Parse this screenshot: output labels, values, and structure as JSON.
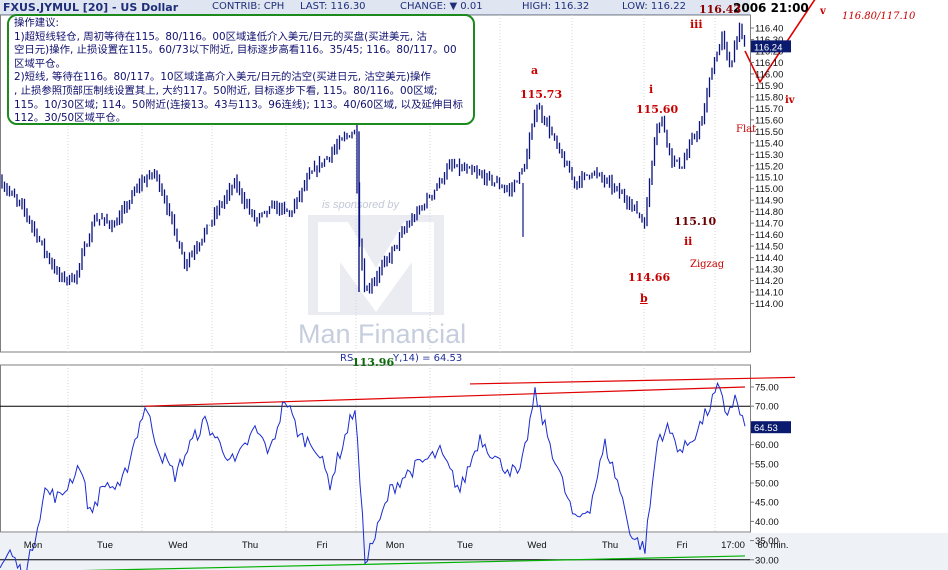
{
  "header": {
    "symbol": "FXUS.JYMUL [20] - US Dollar",
    "contrib": "CONTRIB: CPH",
    "last": "LAST: 116.30",
    "change": "CHANGE: ▼ 0.01",
    "high": "HIGH: 116.32",
    "low": "LOW: 116.22",
    "timestamp": "2006 21:00"
  },
  "note": {
    "lines": [
      "操作建议:",
      "1)超短线轻仓, 周初等待在115。80/116。00区域逢低介入美元/日元的买盘(买进美元, 沽",
      "空日元)操作, 止损设置在115。60/73以下附近, 目标逐步高看116。35/45; 116。80/117。00",
      "区域平仓。",
      "2)短线, 等待在116。80/117。10区域逢高介入美元/日元的沽空(买进日元, 沽空美元)操作",
      ", 止损参照顶部压制线设置其上, 大约117。50附近, 目标逐步下看, 115。80/116。00区域;",
      "115。10/30区域; 114。50附近(连接13。43与113。96连线); 113。40/60区域, 以及延伸目标",
      "112。30/50区域平仓。"
    ]
  },
  "watermark": {
    "brand": "Man Financial",
    "sponsor": "is sponsored by"
  },
  "annotations": {
    "target_zone": "116.80/117.10",
    "wave_v": "v",
    "wave_iv": "iv",
    "wave_iii": "iii",
    "wave_iii_value": "116.43",
    "wave_a": "a",
    "wave_a_value": "115.73",
    "wave_i": "i",
    "wave_i_value": "115.60",
    "wave_ii": "ii",
    "wave_ii_value": "115.10",
    "wave_b": "b",
    "wave_b_value": "114.66",
    "flat": "Flat",
    "zigzag": "Zigzag",
    "low_value": "113.96",
    "rsi_label_prefix": "RS",
    "rsi_label_suffix": "Y,14) = 64.53"
  },
  "chart_data": {
    "type": "line",
    "timeframe": "60 min.",
    "x_ticks": [
      "Mon",
      "Tue",
      "Wed",
      "Thu",
      "Fri",
      "Mon",
      "Tue",
      "Wed",
      "Thu",
      "Fri",
      "17:00",
      "60 min."
    ],
    "price": {
      "y_ticks": [
        "116.40",
        "116.30",
        "116.20",
        "116.10",
        "116.00",
        "115.90",
        "115.80",
        "115.70",
        "115.60",
        "115.50",
        "115.40",
        "115.30",
        "115.20",
        "115.10",
        "115.00",
        "114.90",
        "114.80",
        "114.70",
        "114.60",
        "114.50",
        "114.40",
        "114.30",
        "114.20",
        "114.10",
        "114.00"
      ],
      "ylim": [
        113.95,
        116.5
      ],
      "last_value": "116.24",
      "anchors": [
        [
          0,
          115.07
        ],
        [
          25,
          114.8
        ],
        [
          45,
          114.45
        ],
        [
          60,
          114.22
        ],
        [
          75,
          114.22
        ],
        [
          95,
          114.75
        ],
        [
          115,
          114.68
        ],
        [
          140,
          115.05
        ],
        [
          155,
          115.14
        ],
        [
          165,
          114.9
        ],
        [
          185,
          114.35
        ],
        [
          200,
          114.55
        ],
        [
          220,
          114.85
        ],
        [
          235,
          115.05
        ],
        [
          255,
          114.72
        ],
        [
          275,
          114.85
        ],
        [
          290,
          114.78
        ],
        [
          310,
          115.12
        ],
        [
          330,
          115.3
        ],
        [
          345,
          115.45
        ],
        [
          355,
          115.5
        ],
        [
          359,
          114.58
        ],
        [
          365,
          114.1
        ],
        [
          375,
          114.22
        ],
        [
          390,
          114.42
        ],
        [
          405,
          114.65
        ],
        [
          420,
          114.82
        ],
        [
          435,
          115.0
        ],
        [
          450,
          115.2
        ],
        [
          470,
          115.15
        ],
        [
          490,
          115.08
        ],
        [
          510,
          114.98
        ],
        [
          525,
          115.2
        ],
        [
          536,
          115.73
        ],
        [
          548,
          115.55
        ],
        [
          560,
          115.3
        ],
        [
          575,
          115.05
        ],
        [
          592,
          115.15
        ],
        [
          612,
          115.02
        ],
        [
          630,
          114.88
        ],
        [
          645,
          114.7
        ],
        [
          655,
          115.5
        ],
        [
          662,
          115.6
        ],
        [
          672,
          115.25
        ],
        [
          682,
          115.2
        ],
        [
          692,
          115.42
        ],
        [
          702,
          115.58
        ],
        [
          712,
          116.05
        ],
        [
          722,
          116.32
        ],
        [
          730,
          116.05
        ],
        [
          738,
          116.4
        ],
        [
          745,
          116.24
        ]
      ],
      "target_path": [
        [
          745,
          116.2
        ],
        [
          760,
          115.93
        ],
        [
          815,
          116.65
        ]
      ]
    },
    "rsi": {
      "title": "RSI(Y,14)",
      "last_value": "64.53",
      "y_ticks": [
        "75.00",
        "70.00",
        "65.00",
        "60.00",
        "55.00",
        "50.00",
        "45.00",
        "40.00",
        "35.00",
        "30.00",
        "25.00"
      ],
      "ylim": [
        22,
        78
      ],
      "levels": {
        "upper": 70,
        "lower": 30
      },
      "anchors": [
        [
          0,
          28
        ],
        [
          10,
          32
        ],
        [
          25,
          25
        ],
        [
          45,
          48
        ],
        [
          60,
          46
        ],
        [
          80,
          55
        ],
        [
          90,
          42
        ],
        [
          105,
          50
        ],
        [
          120,
          48
        ],
        [
          145,
          70
        ],
        [
          160,
          58
        ],
        [
          175,
          52
        ],
        [
          190,
          60
        ],
        [
          205,
          66
        ],
        [
          220,
          60
        ],
        [
          235,
          55
        ],
        [
          255,
          64
        ],
        [
          270,
          58
        ],
        [
          285,
          72
        ],
        [
          300,
          62
        ],
        [
          315,
          60
        ],
        [
          330,
          50
        ],
        [
          345,
          62
        ],
        [
          355,
          70
        ],
        [
          365,
          30
        ],
        [
          375,
          36
        ],
        [
          390,
          48
        ],
        [
          405,
          52
        ],
        [
          420,
          55
        ],
        [
          440,
          58
        ],
        [
          460,
          48
        ],
        [
          480,
          62
        ],
        [
          500,
          55
        ],
        [
          520,
          52
        ],
        [
          535,
          73
        ],
        [
          548,
          62
        ],
        [
          560,
          52
        ],
        [
          575,
          40
        ],
        [
          590,
          44
        ],
        [
          605,
          60
        ],
        [
          618,
          50
        ],
        [
          632,
          36
        ],
        [
          645,
          33
        ],
        [
          658,
          62
        ],
        [
          668,
          64
        ],
        [
          682,
          58
        ],
        [
          698,
          64
        ],
        [
          710,
          70
        ],
        [
          718,
          75
        ],
        [
          726,
          68
        ],
        [
          735,
          72
        ],
        [
          745,
          64.5
        ]
      ],
      "trend_upper": [
        [
          145,
          70
        ],
        [
          745,
          75
        ]
      ],
      "trend_lower": [
        [
          50,
          27
        ],
        [
          745,
          31
        ]
      ]
    }
  }
}
